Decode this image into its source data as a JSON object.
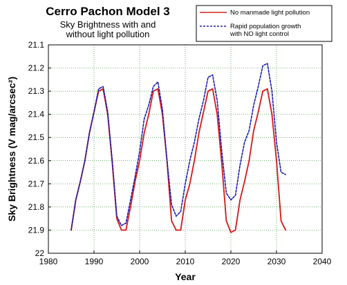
{
  "chart_data": {
    "type": "line",
    "title": "Cerro Pachon Model 3",
    "subtitle": [
      "Sky Brightness with and",
      "without light pollution"
    ],
    "xlabel": "Year",
    "ylabel": "Sky Brightness (V mag/arcsec²)",
    "xlim": [
      1980,
      2040
    ],
    "ylim": [
      22,
      21.1
    ],
    "y_inverted": true,
    "grid": true,
    "legend_position": "top-right",
    "x_ticks": [
      "1980",
      "1990",
      "2000",
      "2010",
      "2020",
      "2030",
      "2040"
    ],
    "y_ticks": [
      "21.1",
      "21.2",
      "21.3",
      "21.4",
      "21.5",
      "21.6",
      "21.7",
      "21.8",
      "21.9",
      "22"
    ],
    "series": [
      {
        "name": "No manmade light pollution",
        "color": "#d42020",
        "style": "solid",
        "points": [
          [
            1985,
            21.9
          ],
          [
            1986,
            21.77
          ],
          [
            1987,
            21.69
          ],
          [
            1988,
            21.6
          ],
          [
            1989,
            21.48
          ],
          [
            1990,
            21.39
          ],
          [
            1991,
            21.3
          ],
          [
            1992,
            21.29
          ],
          [
            1993,
            21.4
          ],
          [
            1994,
            21.61
          ],
          [
            1995,
            21.85
          ],
          [
            1996,
            21.9
          ],
          [
            1997,
            21.9
          ],
          [
            1998,
            21.8
          ],
          [
            1999,
            21.69
          ],
          [
            2000,
            21.6
          ],
          [
            2001,
            21.48
          ],
          [
            2002,
            21.4
          ],
          [
            2003,
            21.3
          ],
          [
            2004,
            21.29
          ],
          [
            2005,
            21.4
          ],
          [
            2006,
            21.6
          ],
          [
            2007,
            21.86
          ],
          [
            2008,
            21.9
          ],
          [
            2009,
            21.9
          ],
          [
            2010,
            21.77
          ],
          [
            2011,
            21.7
          ],
          [
            2012,
            21.6
          ],
          [
            2013,
            21.48
          ],
          [
            2014,
            21.39
          ],
          [
            2015,
            21.3
          ],
          [
            2016,
            21.29
          ],
          [
            2017,
            21.4
          ],
          [
            2018,
            21.61
          ],
          [
            2019,
            21.86
          ],
          [
            2020,
            21.91
          ],
          [
            2021,
            21.9
          ],
          [
            2022,
            21.77
          ],
          [
            2023,
            21.69
          ],
          [
            2024,
            21.6
          ],
          [
            2025,
            21.47
          ],
          [
            2026,
            21.39
          ],
          [
            2027,
            21.3
          ],
          [
            2028,
            21.29
          ],
          [
            2029,
            21.4
          ],
          [
            2030,
            21.6
          ],
          [
            2031,
            21.86
          ],
          [
            2032,
            21.9
          ]
        ]
      },
      {
        "name": "Rapid population growth with NO light control",
        "color": "#1a1ab0",
        "style": "dashed",
        "points": [
          [
            1985,
            21.9
          ],
          [
            1986,
            21.77
          ],
          [
            1987,
            21.69
          ],
          [
            1988,
            21.6
          ],
          [
            1989,
            21.48
          ],
          [
            1990,
            21.39
          ],
          [
            1991,
            21.29
          ],
          [
            1992,
            21.28
          ],
          [
            1993,
            21.39
          ],
          [
            1994,
            21.6
          ],
          [
            1995,
            21.84
          ],
          [
            1996,
            21.88
          ],
          [
            1997,
            21.87
          ],
          [
            1998,
            21.77
          ],
          [
            1999,
            21.67
          ],
          [
            2000,
            21.56
          ],
          [
            2001,
            21.42
          ],
          [
            2002,
            21.36
          ],
          [
            2003,
            21.28
          ],
          [
            2004,
            21.26
          ],
          [
            2005,
            21.38
          ],
          [
            2006,
            21.6
          ],
          [
            2007,
            21.79
          ],
          [
            2008,
            21.84
          ],
          [
            2009,
            21.82
          ],
          [
            2010,
            21.7
          ],
          [
            2011,
            21.6
          ],
          [
            2012,
            21.52
          ],
          [
            2013,
            21.42
          ],
          [
            2014,
            21.34
          ],
          [
            2015,
            21.24
          ],
          [
            2016,
            21.23
          ],
          [
            2017,
            21.34
          ],
          [
            2018,
            21.56
          ],
          [
            2019,
            21.74
          ],
          [
            2020,
            21.77
          ],
          [
            2021,
            21.75
          ],
          [
            2022,
            21.62
          ],
          [
            2023,
            21.52
          ],
          [
            2024,
            21.47
          ],
          [
            2025,
            21.36
          ],
          [
            2026,
            21.28
          ],
          [
            2027,
            21.19
          ],
          [
            2028,
            21.18
          ],
          [
            2029,
            21.3
          ],
          [
            2030,
            21.52
          ],
          [
            2031,
            21.65
          ],
          [
            2032,
            21.66
          ]
        ]
      }
    ]
  },
  "legend": {
    "entry1": "No manmade light pollution",
    "entry2_line1": "Rapid population growth",
    "entry2_line2": "with NO light control"
  }
}
